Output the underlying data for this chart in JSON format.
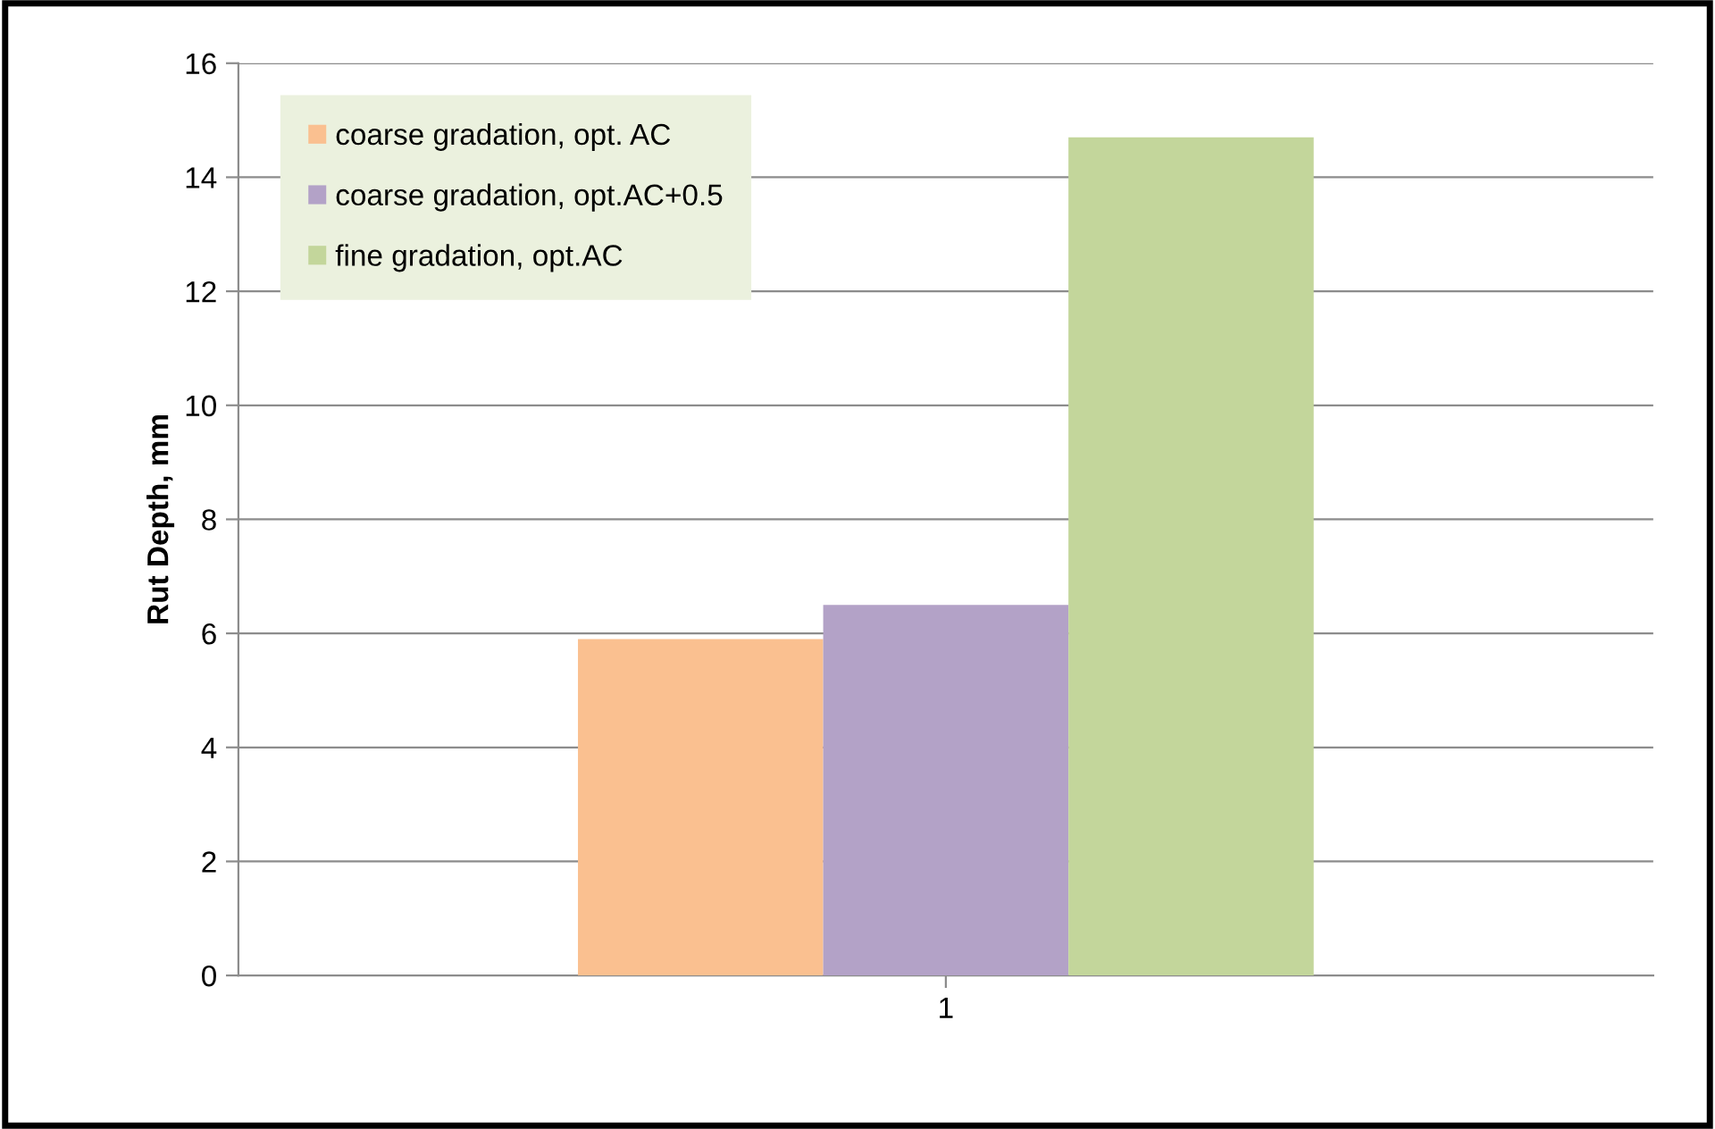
{
  "chart_data": {
    "type": "bar",
    "ylabel": "Rut Depth, mm",
    "categories": [
      "1"
    ],
    "series": [
      {
        "name": "coarse gradation, opt. AC",
        "color": "#fac090",
        "values": [
          5.9
        ]
      },
      {
        "name": "coarse gradation, opt.AC+0.5",
        "color": "#b3a2c7",
        "values": [
          6.5
        ]
      },
      {
        "name": "fine gradation, opt.AC",
        "color": "#c3d69b",
        "values": [
          14.7
        ]
      }
    ],
    "ylim": [
      0,
      16
    ],
    "yticks": [
      0,
      2,
      4,
      6,
      8,
      10,
      12,
      14,
      16
    ],
    "grid": "y",
    "legend": "top left"
  }
}
